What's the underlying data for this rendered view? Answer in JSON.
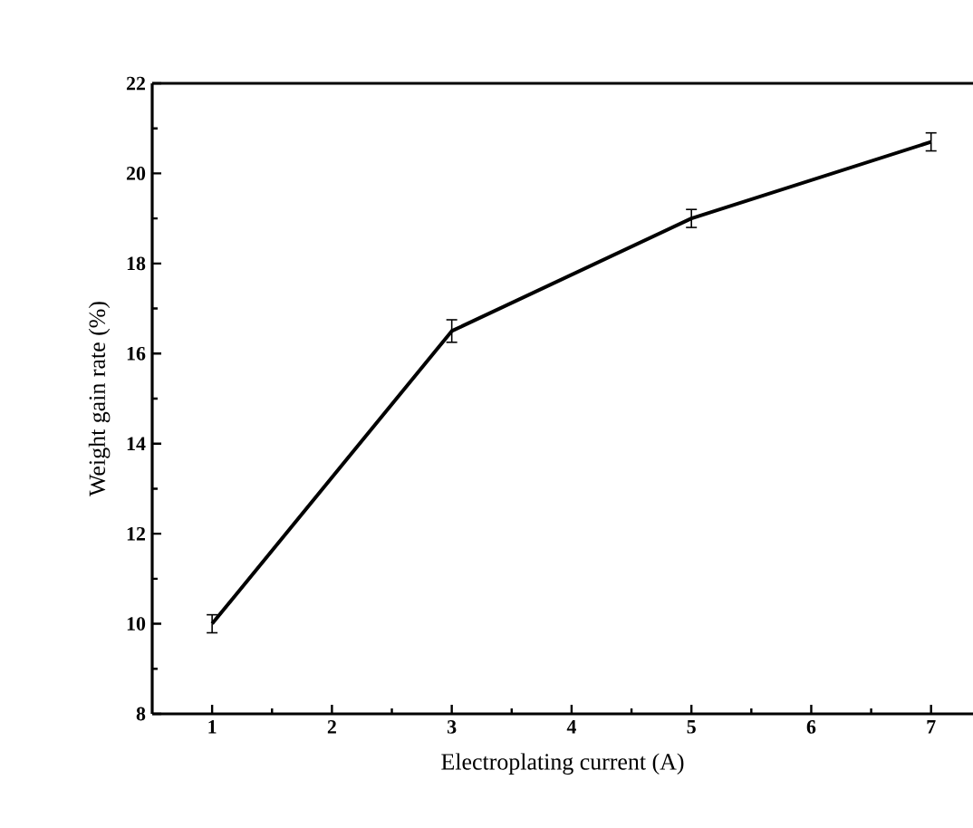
{
  "chart_data": {
    "type": "line",
    "xlabel": "Electroplating current (A)",
    "ylabel": "Weight gain rate (%)",
    "x": [
      1,
      3,
      5,
      7
    ],
    "series": [
      {
        "color": "#000000",
        "values": [
          10.0,
          16.5,
          19.0,
          20.7
        ],
        "errors": [
          0.2,
          0.25,
          0.2,
          0.2
        ]
      }
    ],
    "xlim": [
      0.5,
      7.35
    ],
    "ylim": [
      8,
      22
    ],
    "xticks": [
      1,
      2,
      3,
      4,
      5,
      6,
      7
    ],
    "yticks": [
      8,
      10,
      12,
      14,
      16,
      18,
      20,
      22
    ],
    "grid": false,
    "legend": false,
    "marker": "none",
    "line_style": "solid"
  }
}
